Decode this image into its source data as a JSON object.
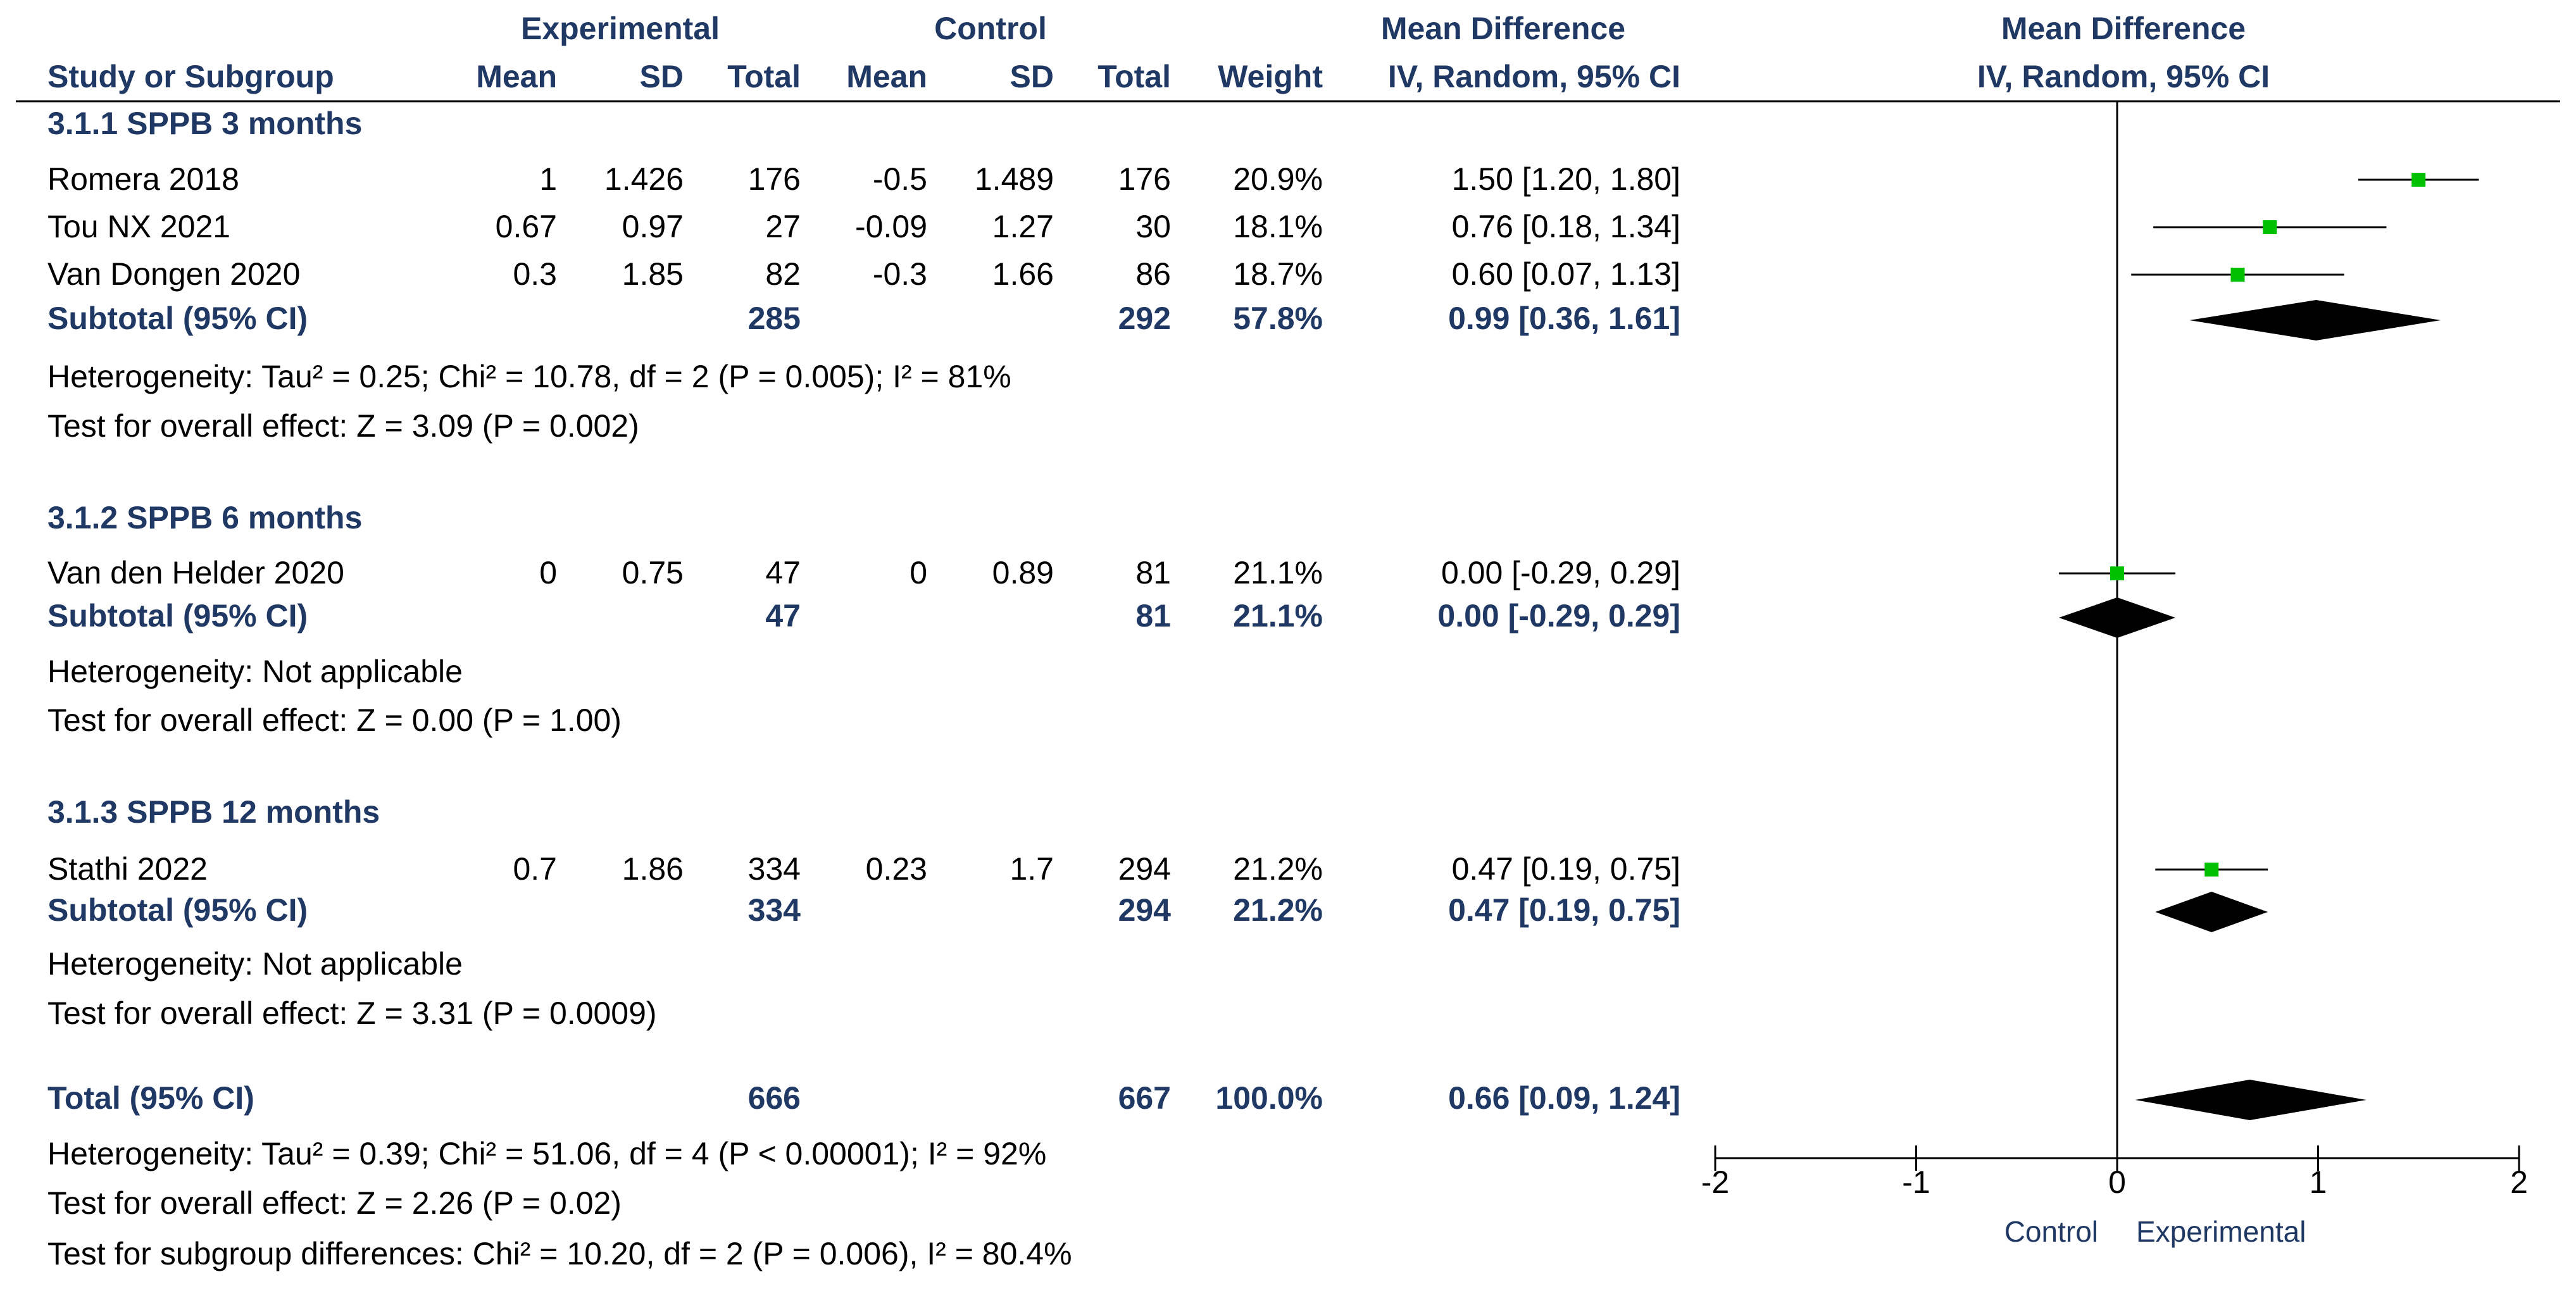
{
  "chart_data": {
    "type": "forest",
    "headers": {
      "study": "Study or Subgroup",
      "experimental": "Experimental",
      "control": "Control",
      "mean": "Mean",
      "sd": "SD",
      "total": "Total",
      "weight": "Weight",
      "md": "Mean Difference",
      "md_method": "IV, Random, 95% CI",
      "plot_title": "Mean Difference",
      "plot_method": "IV, Random, 95% CI"
    },
    "subgroups": [
      {
        "title": "3.1.1 SPPB 3 months",
        "studies": [
          {
            "name": "Romera 2018",
            "e_mean": "1",
            "e_sd": "1.426",
            "e_total": "176",
            "c_mean": "-0.5",
            "c_sd": "1.489",
            "c_total": "176",
            "weight": "20.9%",
            "ci_text": "1.50 [1.20, 1.80]",
            "est": 1.5,
            "lo": 1.2,
            "hi": 1.8
          },
          {
            "name": "Tou NX 2021",
            "e_mean": "0.67",
            "e_sd": "0.97",
            "e_total": "27",
            "c_mean": "-0.09",
            "c_sd": "1.27",
            "c_total": "30",
            "weight": "18.1%",
            "ci_text": "0.76 [0.18, 1.34]",
            "est": 0.76,
            "lo": 0.18,
            "hi": 1.34
          },
          {
            "name": "Van Dongen 2020",
            "e_mean": "0.3",
            "e_sd": "1.85",
            "e_total": "82",
            "c_mean": "-0.3",
            "c_sd": "1.66",
            "c_total": "86",
            "weight": "18.7%",
            "ci_text": "0.60 [0.07, 1.13]",
            "est": 0.6,
            "lo": 0.07,
            "hi": 1.13
          }
        ],
        "subtotal": {
          "label": "Subtotal (95% CI)",
          "e_total": "285",
          "c_total": "292",
          "weight": "57.8%",
          "ci_text": "0.99 [0.36, 1.61]",
          "est": 0.99,
          "lo": 0.36,
          "hi": 1.61
        },
        "heterogeneity": "Heterogeneity: Tau² = 0.25; Chi² = 10.78, df = 2 (P = 0.005); I² = 81%",
        "overall": "Test for overall effect: Z = 3.09 (P = 0.002)"
      },
      {
        "title": "3.1.2 SPPB 6 months",
        "studies": [
          {
            "name": "Van den Helder 2020",
            "e_mean": "0",
            "e_sd": "0.75",
            "e_total": "47",
            "c_mean": "0",
            "c_sd": "0.89",
            "c_total": "81",
            "weight": "21.1%",
            "ci_text": "0.00 [-0.29, 0.29]",
            "est": 0.0,
            "lo": -0.29,
            "hi": 0.29
          }
        ],
        "subtotal": {
          "label": "Subtotal (95% CI)",
          "e_total": "47",
          "c_total": "81",
          "weight": "21.1%",
          "ci_text": "0.00 [-0.29, 0.29]",
          "est": 0.0,
          "lo": -0.29,
          "hi": 0.29
        },
        "heterogeneity": "Heterogeneity: Not applicable",
        "overall": "Test for overall effect: Z = 0.00 (P = 1.00)"
      },
      {
        "title": "3.1.3 SPPB 12 months",
        "studies": [
          {
            "name": "Stathi 2022",
            "e_mean": "0.7",
            "e_sd": "1.86",
            "e_total": "334",
            "c_mean": "0.23",
            "c_sd": "1.7",
            "c_total": "294",
            "weight": "21.2%",
            "ci_text": "0.47 [0.19, 0.75]",
            "est": 0.47,
            "lo": 0.19,
            "hi": 0.75
          }
        ],
        "subtotal": {
          "label": "Subtotal (95% CI)",
          "e_total": "334",
          "c_total": "294",
          "weight": "21.2%",
          "ci_text": "0.47 [0.19, 0.75]",
          "est": 0.47,
          "lo": 0.19,
          "hi": 0.75
        },
        "heterogeneity": "Heterogeneity: Not applicable",
        "overall": "Test for overall effect: Z = 3.31 (P = 0.0009)"
      }
    ],
    "total": {
      "label": "Total (95% CI)",
      "e_total": "666",
      "c_total": "667",
      "weight": "100.0%",
      "ci_text": "0.66 [0.09, 1.24]",
      "est": 0.66,
      "lo": 0.09,
      "hi": 1.24
    },
    "total_heterogeneity": "Heterogeneity: Tau² = 0.39; Chi² = 51.06, df = 4 (P < 0.00001); I² = 92%",
    "total_overall": "Test for overall effect: Z = 2.26 (P = 0.02)",
    "subgroup_test": "Test for subgroup differences: Chi² = 10.20, df = 2 (P = 0.006), I² = 80.4%",
    "axis": {
      "xlim": [
        -2,
        2
      ],
      "ticks": [
        -2,
        -1,
        0,
        1,
        2
      ],
      "tick_labels": [
        "-2",
        "-1",
        "0",
        "1",
        "2"
      ],
      "left_label": "Control",
      "right_label": "Experimental"
    },
    "colors": {
      "header_text": "#1f3864",
      "marker": "#00c000",
      "line": "#000000",
      "diamond": "#000000"
    }
  }
}
